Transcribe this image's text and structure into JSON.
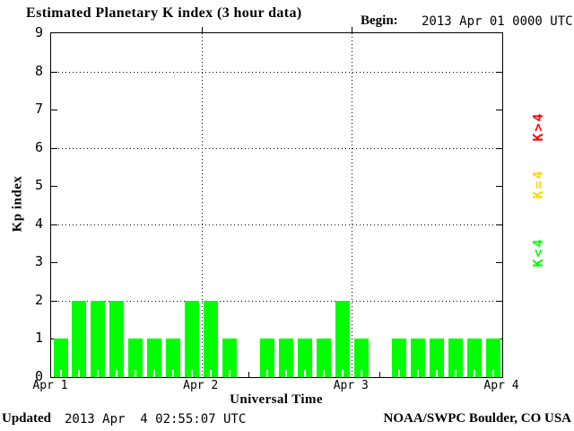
{
  "title": "Estimated Planetary K index (3 hour data)",
  "begin": {
    "label": "Begin:",
    "value": "2013 Apr 01 0000 UTC"
  },
  "axes": {
    "y_label": "Kp index",
    "y_ticks": [
      "9",
      "8",
      "7",
      "6",
      "5",
      "4",
      "3",
      "2",
      "1",
      "0"
    ],
    "x_label": "Universal Time",
    "x_ticks": [
      "Apr 1",
      "Apr 2",
      "Apr 3",
      "Apr 4"
    ]
  },
  "legend": [
    {
      "label": "K>4",
      "color": "#ff0000"
    },
    {
      "label": "K=4",
      "color": "#ffd700"
    },
    {
      "label": "K<4",
      "color": "#00ff00"
    }
  ],
  "footer": {
    "updated_label": "Updated",
    "updated_value": "2013 Apr  4 02:55:07 UTC",
    "credit": "NOAA/SWPC Boulder, CO USA"
  },
  "colors": {
    "bar_green": "#00ff00",
    "threshold_yellow": "#ffd700",
    "threshold_red": "#ff0000",
    "frame": "#000000",
    "background": "#ffffff"
  },
  "chart_data": {
    "type": "bar",
    "title": "Estimated Planetary K index (3 hour data)",
    "xlabel": "Universal Time",
    "ylabel": "Kp index",
    "ylim": [
      0,
      9
    ],
    "gridlines_y": [
      2,
      4,
      6,
      8
    ],
    "grid": "dotted",
    "day_boundaries_x": [
      "Apr 1",
      "Apr 2",
      "Apr 3",
      "Apr 4"
    ],
    "interval_hours": 3,
    "begin": "2013 Apr 01 0000 UTC",
    "series": [
      {
        "name": "Apr 1",
        "values": [
          1,
          2,
          2,
          2,
          1,
          1,
          1,
          2
        ]
      },
      {
        "name": "Apr 2",
        "values": [
          2,
          1,
          0,
          1,
          1,
          1,
          1,
          2
        ]
      },
      {
        "name": "Apr 3",
        "values": [
          1,
          0,
          1,
          1,
          1,
          1,
          1,
          1
        ]
      }
    ],
    "values": [
      1,
      2,
      2,
      2,
      1,
      1,
      1,
      2,
      2,
      1,
      0,
      1,
      1,
      1,
      1,
      2,
      1,
      0,
      1,
      1,
      1,
      1,
      1,
      1
    ],
    "bar_color_rule": {
      "K<4": "#00ff00",
      "K=4": "#ffd700",
      "K>4": "#ff0000"
    },
    "legend_position": "right, rotated 90deg"
  }
}
